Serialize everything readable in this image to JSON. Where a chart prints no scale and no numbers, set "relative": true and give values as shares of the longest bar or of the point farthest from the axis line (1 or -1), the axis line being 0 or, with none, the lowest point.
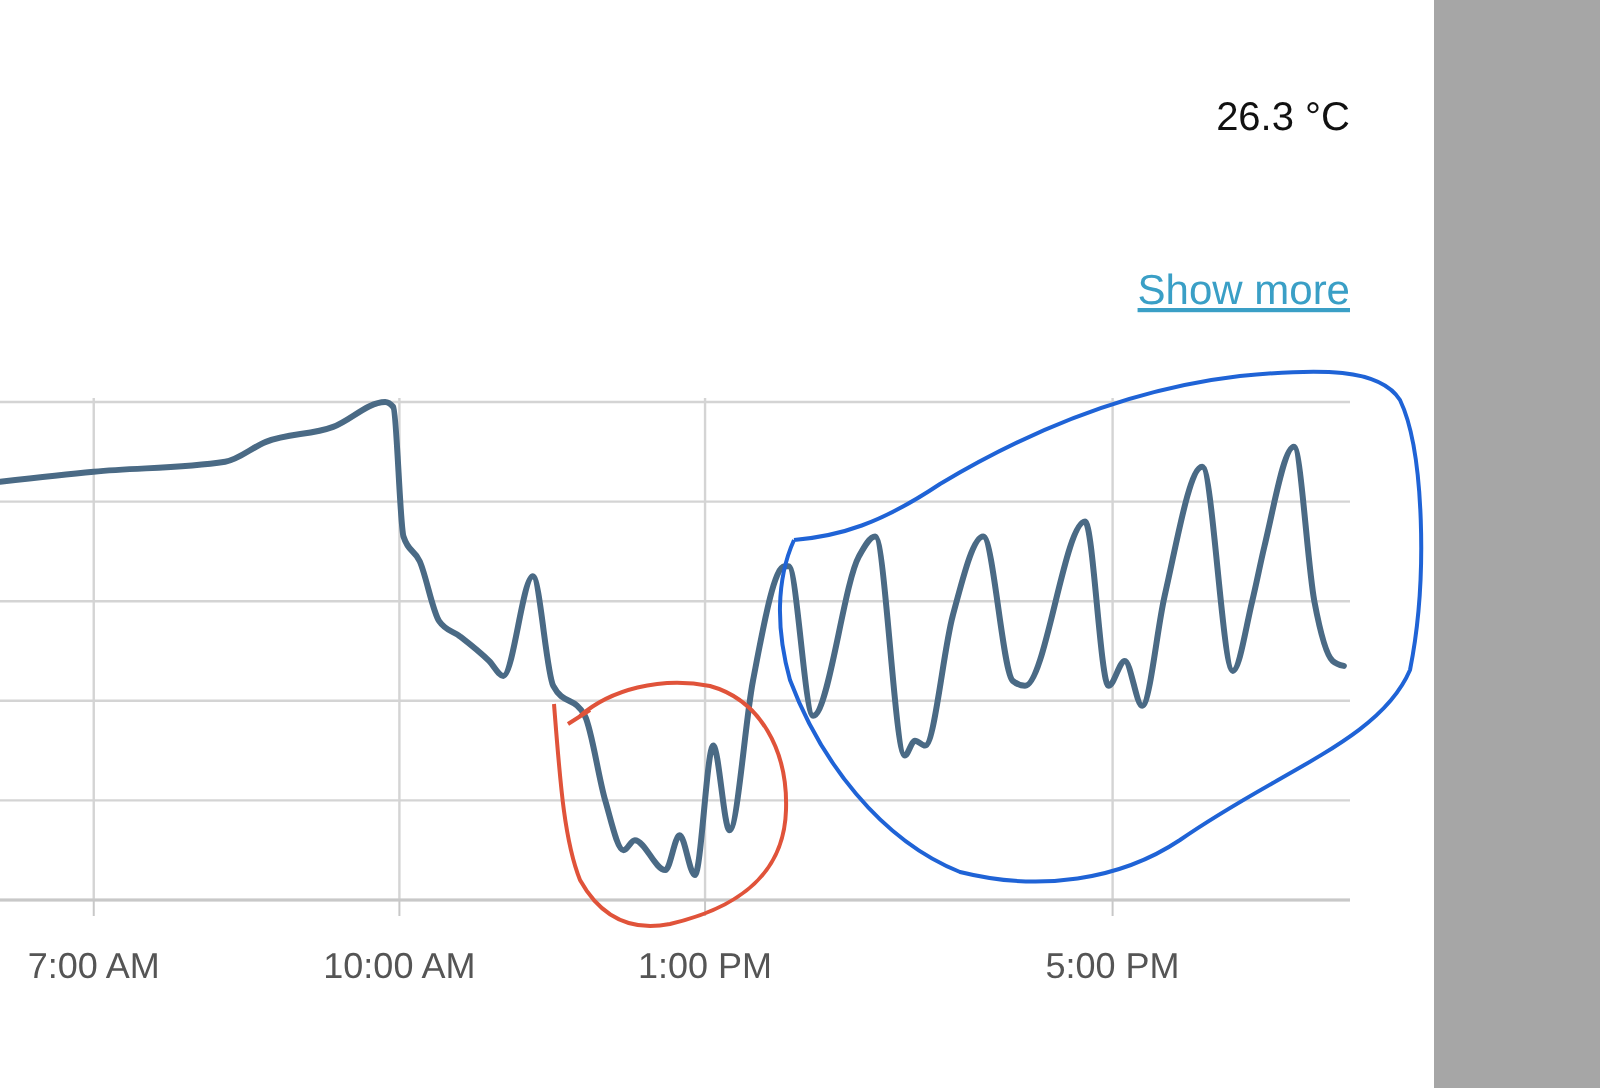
{
  "chart_data": {
    "type": "line",
    "relative": true,
    "grid": true,
    "xlim": [
      6.08,
      19.33
    ],
    "xticks": [
      {
        "value": 7,
        "label": "7:00 AM"
      },
      {
        "value": 10,
        "label": "10:00 AM"
      },
      {
        "value": 13,
        "label": "1:00 PM"
      },
      {
        "value": 17,
        "label": "5:00 PM"
      }
    ],
    "annotations": [
      "26.3 °C",
      "Show more"
    ],
    "series": [
      {
        "color": "#4a6a85",
        "x": [
          6.08,
          7.0,
          8.29,
          8.69,
          9.35,
          9.86,
          9.94,
          10.04,
          10.2,
          10.39,
          10.59,
          10.88,
          11.02,
          11.31,
          11.51,
          11.82,
          12.02,
          12.2,
          12.31,
          12.61,
          12.75,
          12.9,
          13.08,
          13.24,
          13.47,
          13.78,
          13.82,
          14.06,
          14.51,
          14.67,
          14.96,
          15.06,
          15.16,
          15.43,
          15.73,
          16.02,
          16.14,
          16.73,
          16.96,
          17.12,
          17.29,
          17.51,
          17.88,
          18.18,
          18.37,
          18.49,
          18.78,
          18.98,
          19.16,
          19.27
        ],
        "values": [
          0.84,
          0.86,
          0.88,
          0.92,
          0.95,
          1.0,
          0.99,
          0.73,
          0.68,
          0.56,
          0.53,
          0.48,
          0.45,
          0.65,
          0.43,
          0.37,
          0.2,
          0.1,
          0.12,
          0.06,
          0.13,
          0.05,
          0.31,
          0.14,
          0.44,
          0.67,
          0.67,
          0.37,
          0.69,
          0.73,
          0.29,
          0.32,
          0.31,
          0.57,
          0.73,
          0.44,
          0.43,
          0.76,
          0.43,
          0.48,
          0.39,
          0.61,
          0.87,
          0.46,
          0.6,
          0.71,
          0.91,
          0.6,
          0.48,
          0.47
        ]
      }
    ]
  }
}
